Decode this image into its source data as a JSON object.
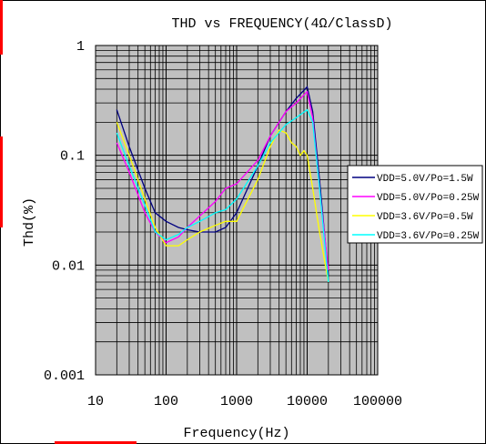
{
  "chart_data": {
    "type": "line",
    "title": "THD vs FREQUENCY(4Ω/ClassD)",
    "xlabel": "Frequency(Hz)",
    "ylabel": "Thd(%)",
    "x_scale": "log",
    "y_scale": "log",
    "xlim": [
      10,
      100000
    ],
    "ylim": [
      0.001,
      1
    ],
    "x_ticks": [
      "10",
      "100",
      "1000",
      "10000",
      "100000"
    ],
    "y_ticks": [
      "0.001",
      "0.01",
      "0.1",
      "1"
    ],
    "plot_area_color": "#c0c0c0",
    "grid": true,
    "legend_position": "right",
    "series": [
      {
        "name": "VDD=5.0V/Po=1.5W",
        "color": "#000080",
        "x": [
          20,
          30,
          50,
          70,
          100,
          150,
          200,
          300,
          500,
          700,
          1000,
          2000,
          3000,
          5000,
          7000,
          10000,
          12000,
          15000,
          20000
        ],
        "y": [
          0.26,
          0.12,
          0.05,
          0.03,
          0.025,
          0.022,
          0.021,
          0.02,
          0.02,
          0.022,
          0.03,
          0.08,
          0.15,
          0.25,
          0.33,
          0.42,
          0.25,
          0.06,
          0.008
        ]
      },
      {
        "name": "VDD=5.0V/Po=0.25W",
        "color": "#ff00ff",
        "x": [
          20,
          30,
          50,
          70,
          100,
          150,
          200,
          300,
          500,
          700,
          1000,
          2000,
          3000,
          5000,
          7000,
          10000,
          12000,
          15000,
          20000
        ],
        "y": [
          0.13,
          0.07,
          0.03,
          0.02,
          0.016,
          0.018,
          0.022,
          0.028,
          0.038,
          0.05,
          0.055,
          0.09,
          0.15,
          0.25,
          0.3,
          0.38,
          0.22,
          0.05,
          0.009
        ]
      },
      {
        "name": "VDD=3.6V/Po=0.5W",
        "color": "#ffff00",
        "x": [
          20,
          30,
          50,
          70,
          100,
          150,
          200,
          300,
          500,
          700,
          1000,
          2000,
          3000,
          4000,
          5000,
          6000,
          7000,
          8000,
          9000,
          10000,
          12000,
          15000,
          20000
        ],
        "y": [
          0.2,
          0.1,
          0.04,
          0.022,
          0.015,
          0.015,
          0.017,
          0.02,
          0.023,
          0.025,
          0.025,
          0.06,
          0.12,
          0.17,
          0.16,
          0.13,
          0.12,
          0.1,
          0.11,
          0.1,
          0.05,
          0.02,
          0.007
        ]
      },
      {
        "name": "VDD=3.6V/Po=0.25W",
        "color": "#00ffff",
        "x": [
          20,
          30,
          50,
          70,
          100,
          150,
          200,
          300,
          500,
          700,
          1000,
          2000,
          3000,
          5000,
          7000,
          10000,
          12000,
          15000,
          20000
        ],
        "y": [
          0.16,
          0.08,
          0.035,
          0.02,
          0.017,
          0.019,
          0.022,
          0.025,
          0.03,
          0.032,
          0.04,
          0.08,
          0.13,
          0.19,
          0.22,
          0.26,
          0.2,
          0.05,
          0.007
        ]
      }
    ]
  }
}
